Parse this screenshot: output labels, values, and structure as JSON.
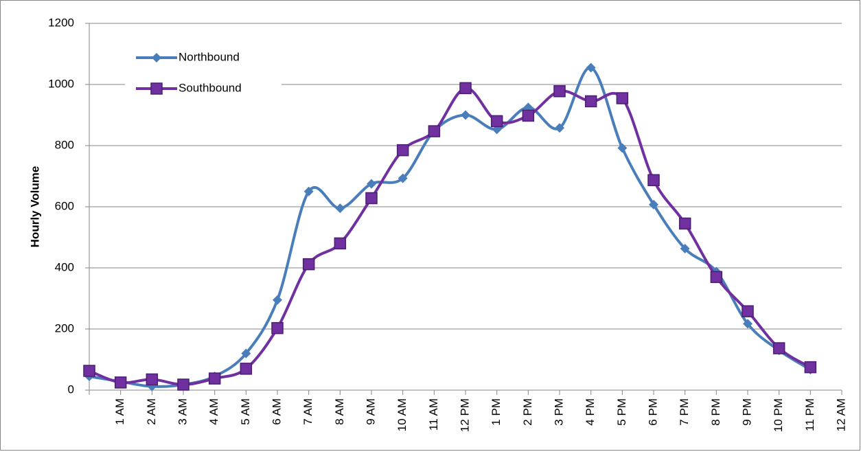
{
  "chart_data": {
    "type": "line",
    "y_label": "Hourly Volume",
    "categories": [
      null,
      "1 AM",
      "2 AM",
      "3 AM",
      "4 AM",
      "5 AM",
      "6 AM",
      "7 AM",
      "8 AM",
      "9 AM",
      "10 AM",
      "11 AM",
      "12 PM",
      "1 PM",
      "2 PM",
      "3 PM",
      "4 PM",
      "5 PM",
      "6 PM",
      "7 PM",
      "8 PM",
      "9 PM",
      "10 PM",
      "11 PM",
      "12 AM"
    ],
    "series": [
      {
        "name": "Northbound",
        "color": "#4a7ebb",
        "marker": "diamond",
        "values": [
          45,
          28,
          12,
          18,
          45,
          120,
          295,
          650,
          595,
          675,
          693,
          848,
          900,
          853,
          925,
          858,
          1055,
          792,
          607,
          463,
          388,
          217,
          130,
          67,
          null
        ]
      },
      {
        "name": "Southbound",
        "color": "#7030a0",
        "marker": "square",
        "values": [
          63,
          25,
          35,
          18,
          38,
          70,
          203,
          412,
          480,
          628,
          785,
          847,
          988,
          880,
          898,
          978,
          945,
          955,
          687,
          545,
          370,
          258,
          137,
          75,
          null
        ]
      }
    ],
    "ylim": [
      0,
      1200
    ],
    "yticks": [
      0,
      200,
      400,
      600,
      800,
      1000,
      1200
    ],
    "grid": true,
    "smooth": true,
    "legend": "upper left"
  }
}
